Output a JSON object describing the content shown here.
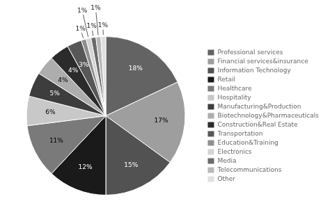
{
  "chart_data": {
    "type": "pie",
    "categories": [
      "Professional services",
      "Financial services&insurance",
      "Information Technology",
      "Retail",
      "Healthcare",
      "Hospitality",
      "Manufacturing&Production",
      "Biotechnology&Pharmaceuticals",
      "Construction&Real Estate",
      "Transportation",
      "Education&Training",
      "Electronics",
      "Media",
      "Telecommunications",
      "Other"
    ],
    "values": [
      18,
      17,
      15,
      12,
      11,
      6,
      5,
      4,
      4,
      3,
      1,
      1,
      1,
      1,
      1
    ],
    "value_labels": [
      "18%",
      "17%",
      "15%",
      "12%",
      "11%",
      "6%",
      "5%",
      "4%",
      "4%",
      "3%",
      "1%",
      "1%",
      "1%",
      "1%",
      "1%"
    ],
    "colors": [
      "#636363",
      "#9e9e9e",
      "#525252",
      "#1a1a1a",
      "#7a7a7a",
      "#c8c8c8",
      "#3d3d3d",
      "#adadad",
      "#2b2b2b",
      "#575757",
      "#8f8f8f",
      "#d4d4d4",
      "#6b6b6b",
      "#b8b8b8",
      "#e0e0e0"
    ],
    "data_labels": true,
    "legend": "right"
  }
}
